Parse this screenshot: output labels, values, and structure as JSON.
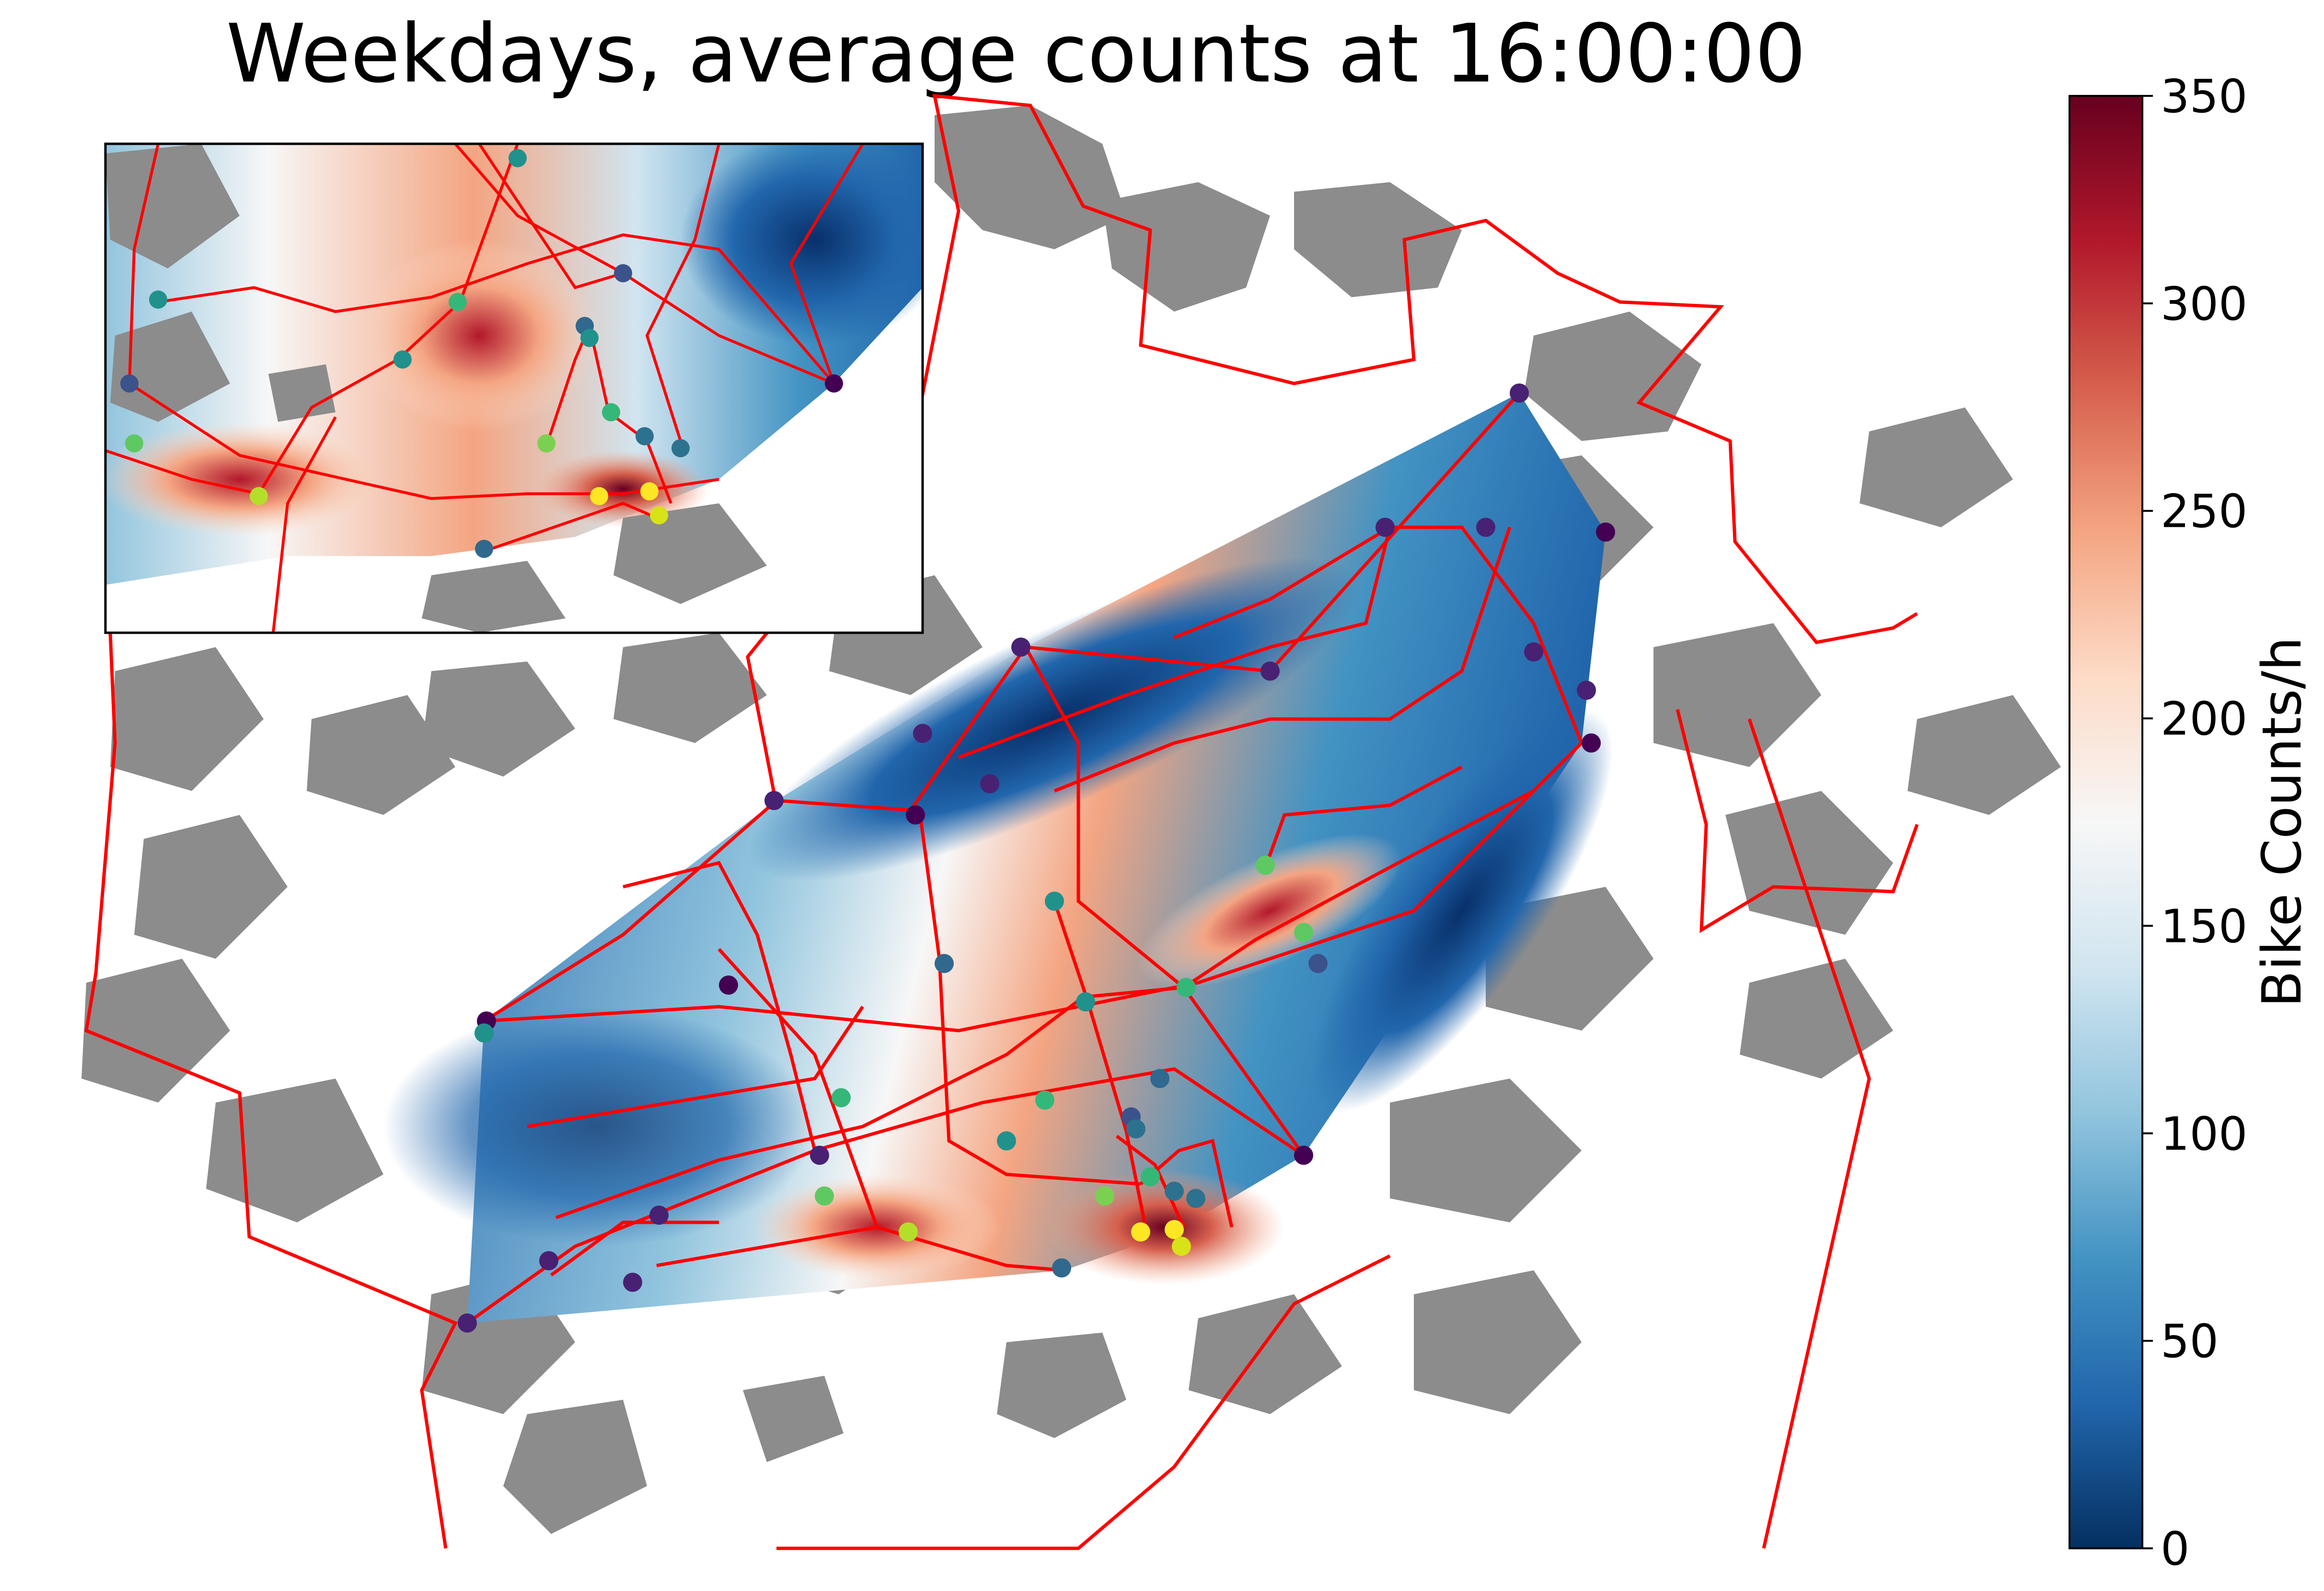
{
  "title": "Weekdays, average counts at 16:00:00",
  "colorbar": {
    "label": "Bike Counts/h",
    "min": 0,
    "max": 350,
    "ticks": [
      0,
      50,
      100,
      150,
      200,
      250,
      300,
      350
    ],
    "tick_labels": [
      "0",
      "50",
      "100",
      "150",
      "200",
      "250",
      "300",
      "350"
    ],
    "colormap": [
      "#053061",
      "#2166ac",
      "#4393c3",
      "#92c5de",
      "#d1e5f0",
      "#f7f7f7",
      "#fddbc7",
      "#f4a582",
      "#d6604d",
      "#b2182b",
      "#67001f"
    ]
  },
  "colors": {
    "roads": "#ff0000",
    "built_up": "#8c8c8c",
    "station_palette": [
      "#440154",
      "#3b528b",
      "#21918c",
      "#5ec962",
      "#fde725"
    ]
  },
  "map": {
    "inset": true,
    "markers": "counting-station dots colored by count level"
  }
}
